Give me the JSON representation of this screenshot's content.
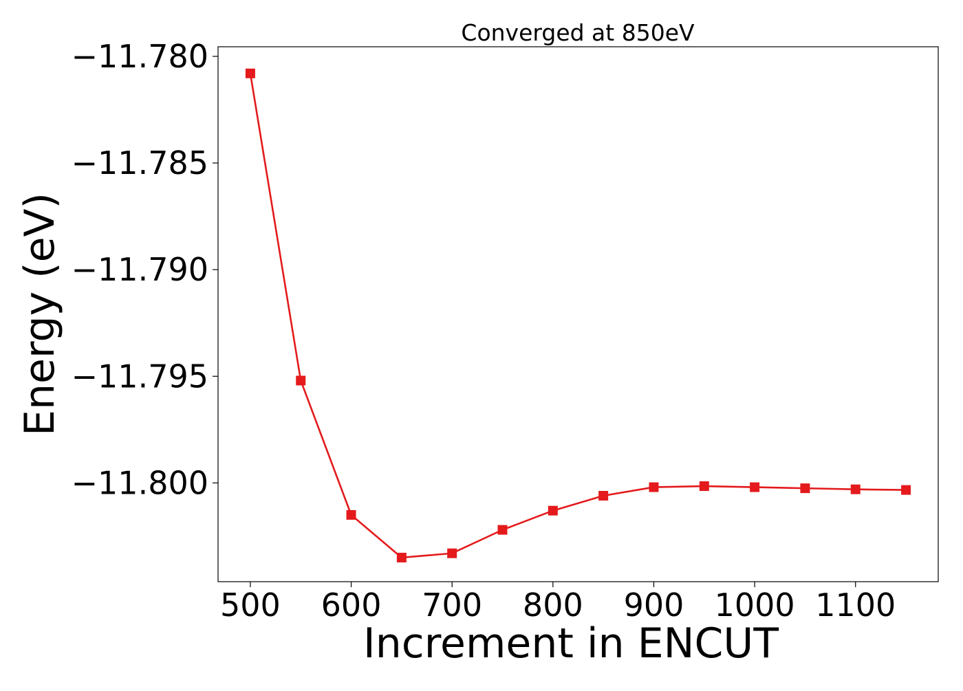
{
  "chart_data": {
    "type": "line",
    "title": "Converged at 850eV",
    "xlabel": "Increment in ENCUT",
    "ylabel": "Energy (eV)",
    "x": [
      500,
      550,
      600,
      650,
      700,
      750,
      800,
      850,
      900,
      950,
      1000,
      1050,
      1100,
      1150
    ],
    "series": [
      {
        "name": "",
        "color": "#e41a1c",
        "marker": "square",
        "values": [
          -11.7808,
          -11.7952,
          -11.8015,
          -11.8035,
          -11.8033,
          -11.8022,
          -11.8013,
          -11.8006,
          -11.8002,
          -11.80015,
          -11.8002,
          -11.80025,
          -11.8003,
          -11.80033
        ]
      }
    ],
    "xlim": [
      468,
      1182
    ],
    "ylim": [
      -11.80463,
      -11.77955
    ],
    "xticks": [
      500,
      600,
      700,
      800,
      900,
      1000,
      1100
    ],
    "xtick_labels": [
      "500",
      "600",
      "700",
      "800",
      "900",
      "1000",
      "1100"
    ],
    "yticks": [
      -11.78,
      -11.785,
      -11.79,
      -11.795,
      -11.8
    ],
    "ytick_labels": [
      "−11.780",
      "−11.785",
      "−11.790",
      "−11.795",
      "−11.800"
    ],
    "grid": false,
    "legend": "none"
  }
}
